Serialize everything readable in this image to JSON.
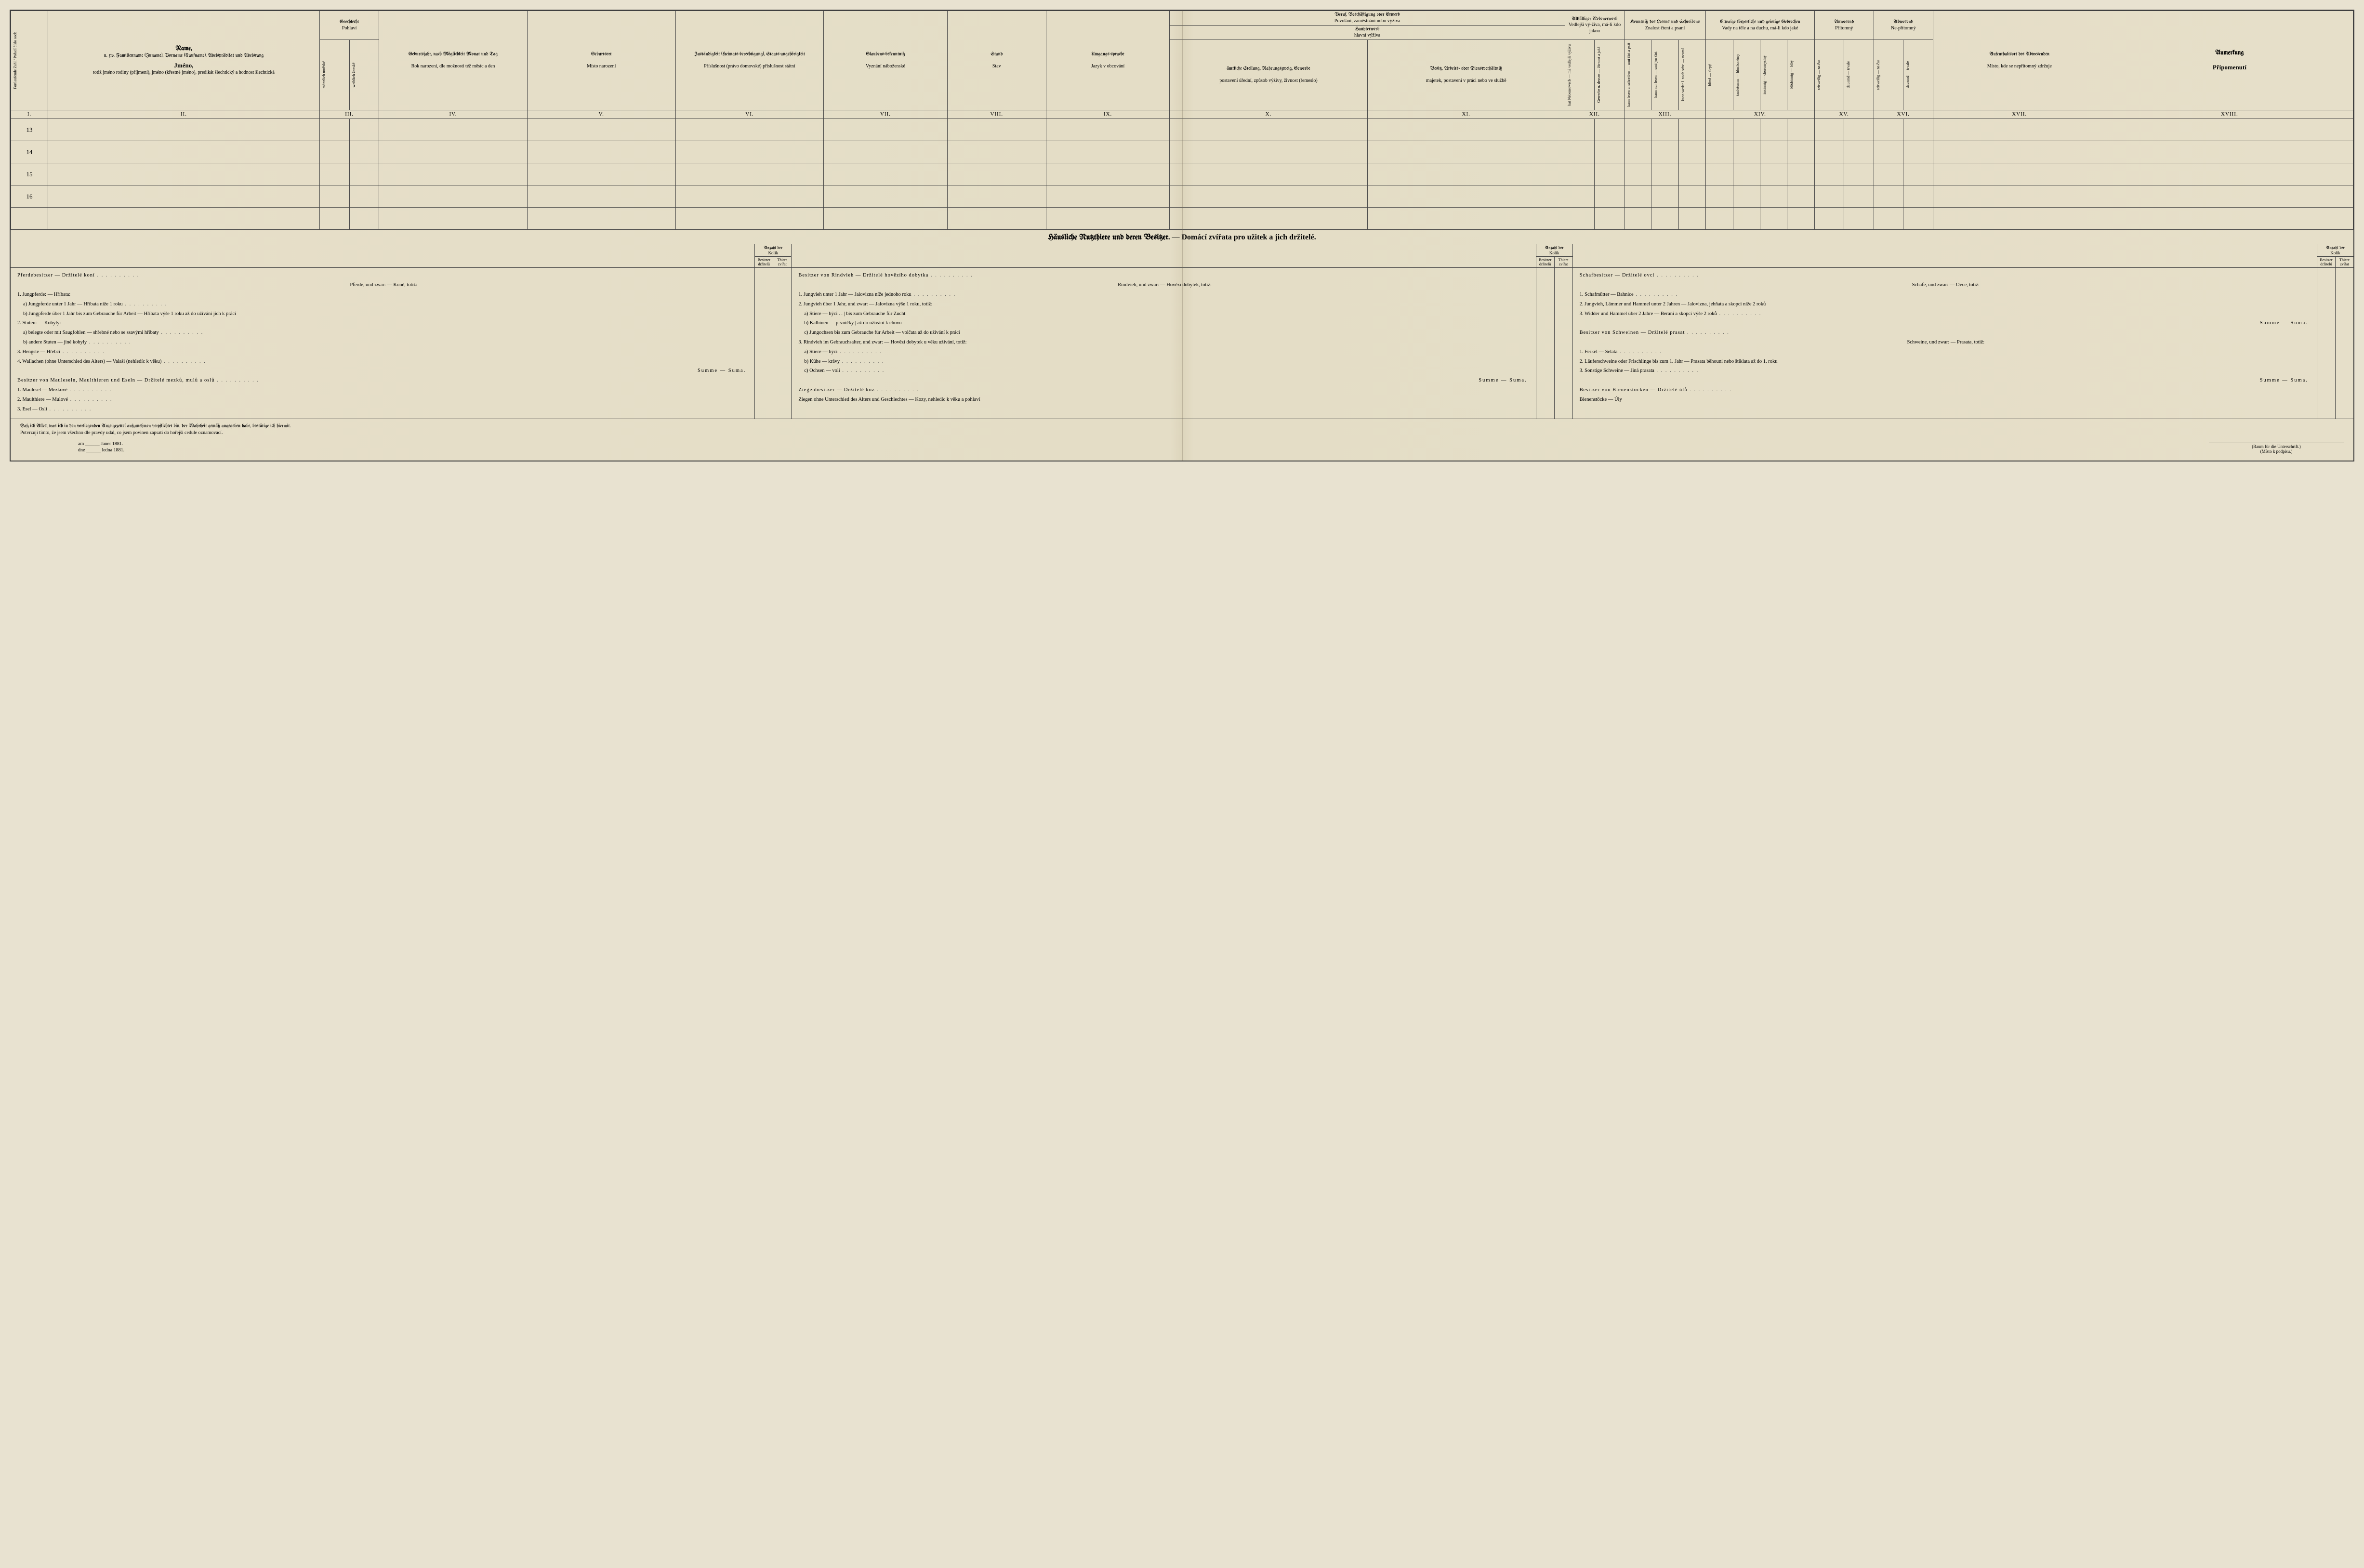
{
  "columns": {
    "c1": {
      "roman": "I."
    },
    "c2": {
      "de_title": "Name,",
      "de_sub": "u. zw. Familienname (Zuname), Vorname (Taufname), Adelsprädikat und Adelsrang",
      "cz_title": "Jméno,",
      "cz_sub": "totiž jméno rodiny (příjmení), jméno (křestné jméno), predikát šlechtický a hodnost šlechtická",
      "roman": "II."
    },
    "c3": {
      "de": "Geschlecht",
      "cz": "Pohlaví",
      "m_de": "männlich",
      "m_cz": "mužské",
      "f_de": "weiblich",
      "f_cz": "ženské",
      "roman": "III."
    },
    "c4": {
      "de": "Geburtsjahr, nach Möglichkeit Monat und Tag",
      "cz": "Rok narození, dle možnosti též měsíc a den",
      "roman": "IV."
    },
    "c5": {
      "de": "Geburtsort",
      "cz": "Místo narození",
      "roman": "V."
    },
    "c6": {
      "de": "Zuständigkeit (Heimats-berechtigung), Staats-angehörigkeit",
      "cz": "Příslušnost (právo domovské) příslušnost státní",
      "roman": "VI."
    },
    "c7": {
      "de": "Glaubens-bekenntniß",
      "cz": "Vyznání náboženské",
      "roman": "VII."
    },
    "c8": {
      "de": "Stand",
      "cz": "Stav",
      "roman": "VIII."
    },
    "c9": {
      "de": "Umgangs-sprache",
      "cz": "Jazyk v obcování",
      "roman": "IX."
    },
    "c10_11": {
      "top_de": "Beruf, Beschäftigung oder Erwerb",
      "top_cz": "Povolání, zaměstnání nebo výživa",
      "mid_de": "Haupterwerb",
      "mid_cz": "hlavní výživa",
      "c10_de": "ämtliche Stellung, Nahrungszweig, Gewerbe",
      "c10_cz": "postavení úřední, způsob výživy, živnost (řemeslo)",
      "c11_de": "Besitz, Arbeits- oder Dienstverhältniß",
      "c11_cz": "majetek, postavení v práci nebo ve službě",
      "r10": "X.",
      "r11": "XI."
    },
    "c12": {
      "de": "Allfälliger Nebenerwerb",
      "cz": "Vedlejší vý-živa, má-li kdo jakou",
      "roman": "XII."
    },
    "c13": {
      "de": "Kenntniß des Lesens und Schreibens",
      "cz": "Znalost čtení a psaní",
      "roman": "XIII."
    },
    "c14": {
      "de": "Etwaige körperliche und geistige Gebrechen",
      "cz": "Vady na těle a na duchu, má-li kdo jaké",
      "roman": "XIV."
    },
    "c15": {
      "de": "Anwesend",
      "cz": "Přítomný",
      "roman": "XV."
    },
    "c16": {
      "de": "Abwesend",
      "cz": "Ne-přítomný",
      "roman": "XVI."
    },
    "c17": {
      "de": "Aufenthaltsort des Abwesenden",
      "cz": "Místo, kde se nepřítomný zdržuje",
      "roman": "XVII."
    },
    "c18": {
      "de": "Anmerkung",
      "cz": "Připomenutí",
      "roman": "XVIII."
    }
  },
  "rows": [
    "13",
    "14",
    "15",
    "16",
    ""
  ],
  "section_title": {
    "de": "Häusliche Nutzthiere und deren Besitzer.",
    "sep": " — ",
    "cz": "Domácí zvířata pro užitek a jich držitelé."
  },
  "anzahl": {
    "top_de": "Anzahl der",
    "top_cz": "Kolik",
    "l_de": "Besitzer",
    "l_cz": "držitelů",
    "r_de": "Thiere",
    "r_cz": "zvířat"
  },
  "ls_col1": {
    "h1": "Pferdebesitzer — Držitelé koní",
    "h1s": "Pferde, und zwar: — Koně, totiž:",
    "i1": "1. Jungpferde: — Hříbata:",
    "i1a": "a) Jungpferde unter 1 Jahr — Hříbata níže 1 roku",
    "i1b": "b) Jungpferde über 1 Jahr bis zum Gebrauche für Arbeit — Hříbata výše 1 roku až do užívání jich k práci",
    "i2": "2. Stuten: — Kobyly:",
    "i2a": "a) belegte oder mit Saugfohlen — shřebné nebo se ssavými hříbaty",
    "i2b": "b) andere Stuten — jiné kobyly",
    "i3": "3. Hengste — Hřebci",
    "i4": "4. Wallachen (ohne Unterschied des Alters) — Valaši (nehledíc k věku)",
    "sum": "Summe — Suma.",
    "h2": "Besitzer von Mauleseln, Maulthieren und Eseln — Držitelé mezků, mulů a oslů",
    "j1": "1. Maulesel — Mezkové",
    "j2": "2. Maulthiere — Mulové",
    "j3": "3. Esel — Osli"
  },
  "ls_col2": {
    "h1": "Besitzer von Rindvieh — Držitelé hovězího dobytka",
    "h1s": "Rindvieh, und zwar: — Hovězí dobytek, totiž:",
    "i1": "1. Jungvieh unter 1 Jahr — Jalovizna níže jednoho roku",
    "i2": "2. Jungvieh über 1 Jahr, und zwar: — Jalovizna výše 1 roku, totiž:",
    "i2a": "a) Stiere — býci . . | bis zum Gebrauche für Zucht",
    "i2b": "b) Kalbinen — prvničky | až do užívání k chovu",
    "i2c": "c) Jungochsen bis zum Gebrauche für Arbeit — volčata až do užívání k práci",
    "i3": "3. Rindvieh im Gebrauchsalter, und zwar: — Hovězí dobytek u věku užívání, totiž:",
    "i3a": "a) Stiere — býci",
    "i3b": "b) Kühe — krávy",
    "i3c": "c) Ochsen — voli",
    "sum": "Summe — Suma.",
    "h2": "Ziegenbesitzer — Držitelé koz",
    "h2s": "Ziegen ohne Unterschied des Alters und Geschlechtes — Kozy, nehledíc k věku a pohlaví"
  },
  "ls_col3": {
    "h1": "Schafbesitzer — Držitelé ovcí",
    "h1s": "Schafe, und zwar: — Ovce, totiž:",
    "i1": "1. Schafmütter — Bahnice",
    "i2": "2. Jungvieh, Lämmer und Hammel unter 2 Jahren — Jalovizna, jehňata a skopci níže 2 roků",
    "i3": "3. Widder und Hammel über 2 Jahre — Berani a skopci výše 2 roků",
    "sum1": "Summe — Suma.",
    "h2": "Besitzer von Schweinen — Držitelé prasat",
    "h2s": "Schweine, und zwar: — Prasata, totiž:",
    "j1": "1. Ferkel — Selata",
    "j2": "2. Läuferschweine oder Frischlinge bis zum 1. Jahr — Prasata běhouni nebo štíklata až do 1. roku",
    "j3": "3. Sonstige Schweine — Jiná prasata",
    "sum2": "Summe — Suma.",
    "h3": "Besitzer von Bienenstöcken — Držitelé úlů",
    "h3s": "Bienenstöcke — Úly",
    "extra_l": "Besitzer Držitelé",
    "extra_r": "Bienen-stöcke Úly"
  },
  "footer": {
    "decl_de": "Daß ich Alles, was ich in den vorliegenden Anzeigezettel aufzunehmen verpflichtet bin, der Wahrheit gemäß angegeben habe, bestätige ich hiermit.",
    "decl_cz": "Potvrzuji tímto, že jsem všechno dle pravdy udal, co jsem povinen zapsati do hořejší cedule oznamovací.",
    "date_de": "am ______ Jäner 1881.",
    "date_cz": "dne ______ ledna 1881.",
    "sig_de": "(Raum für die Unterschrift.)",
    "sig_cz": "(Místo k podpisu.)"
  },
  "sub13": {
    "a": "kann lesen u. schreiben — umí číst a psát",
    "b": "kann nur lesen — umí jen číst",
    "c": "kann weder l. noch schr. — neumí"
  },
  "sub14": {
    "a": "blind — slepý",
    "b": "taubstumm — hluchoněmý",
    "c": "irrsinnig — choromyslný",
    "d": "blödsinnig — blbý"
  },
  "sub15": {
    "a": "zeitweilig — na čas",
    "b": "dauernd — trvale"
  },
  "sub16": {
    "a": "zeitweilig — na čas",
    "b": "dauernd — trvale"
  },
  "sub12": {
    "a": "hat Nebenerwerb — má vedlejší výživu",
    "b": "Gewerbe u. dessen — živnost a jaká"
  }
}
